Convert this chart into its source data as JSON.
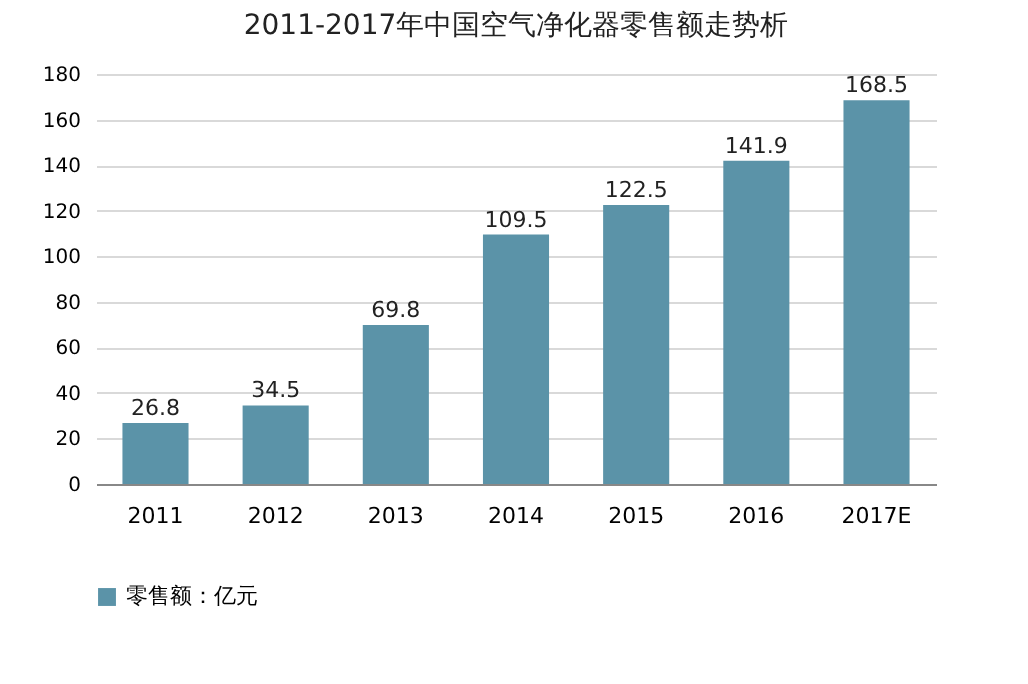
{
  "chart_data": {
    "type": "bar",
    "title": "2011-2017年中国空气净化器零售额走势析",
    "categories": [
      "2011",
      "2012",
      "2013",
      "2014",
      "2015",
      "2016",
      "2017E"
    ],
    "series": [
      {
        "name": "零售额：亿元",
        "color": "#5b93a8",
        "values": [
          26.8,
          34.5,
          69.8,
          109.5,
          122.5,
          141.9,
          168.5
        ]
      }
    ],
    "ylim": [
      0,
      180
    ],
    "yticks": [
      0,
      20,
      40,
      60,
      80,
      100,
      120,
      140,
      160,
      180
    ],
    "grid": "y",
    "legend": "bottom",
    "data_labels": true
  }
}
